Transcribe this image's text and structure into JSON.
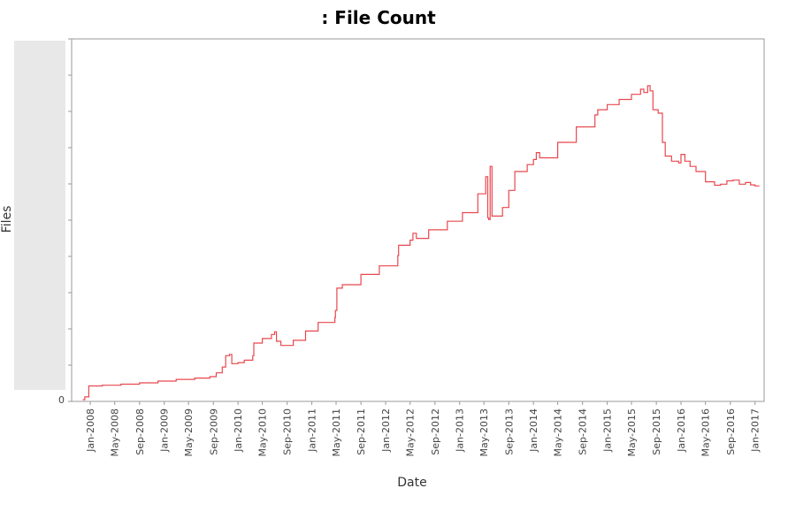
{
  "chart_data": {
    "type": "line",
    "title": ": File Count",
    "xlabel": "Date",
    "ylabel": "Files",
    "y_tick_labels": [
      "0"
    ],
    "x_tick_labels": [
      "Jan-2008",
      "May-2008",
      "Sep-2008",
      "Jan-2009",
      "May-2009",
      "Sep-2009",
      "Jan-2010",
      "May-2010",
      "Sep-2010",
      "Jan-2011",
      "May-2011",
      "Sep-2011",
      "Jan-2012",
      "May-2012",
      "Sep-2012",
      "Jan-2013",
      "May-2013",
      "Sep-2013",
      "Jan-2014",
      "May-2014",
      "Sep-2014",
      "Jan-2015",
      "May-2015",
      "Sep-2015",
      "Jan-2016",
      "May-2016",
      "Sep-2016",
      "Jan-2017"
    ],
    "xlim": [
      "2007-10-01",
      "2017-02-15"
    ],
    "ylim": [
      0,
      100
    ],
    "grid": false,
    "legend": false,
    "colors": {
      "line": "#e8484f",
      "axis": "#999999",
      "ylabel_band": "#e6e6e6"
    },
    "series": [
      {
        "points": [
          [
            "2007-11-25",
            0.0
          ],
          [
            "2007-12-05",
            0.8
          ],
          [
            "2007-12-20",
            0.8
          ],
          [
            "2007-12-25",
            4.0
          ],
          [
            "2008-03-01",
            4.2
          ],
          [
            "2008-06-01",
            4.5
          ],
          [
            "2008-09-01",
            4.9
          ],
          [
            "2008-12-01",
            5.4
          ],
          [
            "2009-03-01",
            5.9
          ],
          [
            "2009-06-01",
            6.3
          ],
          [
            "2009-08-15",
            6.7
          ],
          [
            "2009-09-15",
            7.8
          ],
          [
            "2009-10-15",
            9.5
          ],
          [
            "2009-11-01",
            12.8
          ],
          [
            "2009-11-20",
            13.2
          ],
          [
            "2009-12-01",
            10.5
          ],
          [
            "2010-01-01",
            10.8
          ],
          [
            "2010-02-01",
            11.5
          ],
          [
            "2010-03-15",
            12.8
          ],
          [
            "2010-03-20",
            16.5
          ],
          [
            "2010-05-01",
            17.8
          ],
          [
            "2010-06-15",
            19.0
          ],
          [
            "2010-07-01",
            19.8
          ],
          [
            "2010-07-10",
            17.0
          ],
          [
            "2010-08-01",
            15.8
          ],
          [
            "2010-10-01",
            17.3
          ],
          [
            "2010-12-01",
            20.0
          ],
          [
            "2011-02-01",
            22.5
          ],
          [
            "2011-04-25",
            24.0
          ],
          [
            "2011-04-28",
            26.0
          ],
          [
            "2011-05-05",
            32.5
          ],
          [
            "2011-06-01",
            33.5
          ],
          [
            "2011-09-01",
            36.5
          ],
          [
            "2011-12-01",
            39.0
          ],
          [
            "2012-03-01",
            42.0
          ],
          [
            "2012-03-05",
            45.0
          ],
          [
            "2012-05-01",
            46.5
          ],
          [
            "2012-05-15",
            48.5
          ],
          [
            "2012-06-01",
            47.0
          ],
          [
            "2012-08-01",
            49.5
          ],
          [
            "2012-11-01",
            52.0
          ],
          [
            "2013-01-15",
            54.5
          ],
          [
            "2013-04-01",
            60.0
          ],
          [
            "2013-05-10",
            65.0
          ],
          [
            "2013-05-20",
            53.0
          ],
          [
            "2013-05-25",
            52.5
          ],
          [
            "2013-06-01",
            68.0
          ],
          [
            "2013-06-10",
            53.5
          ],
          [
            "2013-08-01",
            56.0
          ],
          [
            "2013-09-01",
            61.0
          ],
          [
            "2013-10-01",
            66.5
          ],
          [
            "2013-12-01",
            68.5
          ],
          [
            "2014-01-01",
            70.0
          ],
          [
            "2014-01-15",
            72.0
          ],
          [
            "2014-02-01",
            70.5
          ],
          [
            "2014-05-01",
            75.0
          ],
          [
            "2014-08-01",
            79.5
          ],
          [
            "2014-11-01",
            83.0
          ],
          [
            "2014-11-15",
            84.5
          ],
          [
            "2015-01-01",
            86.0
          ],
          [
            "2015-03-01",
            87.5
          ],
          [
            "2015-05-01",
            89.0
          ],
          [
            "2015-06-15",
            90.5
          ],
          [
            "2015-07-01",
            89.5
          ],
          [
            "2015-07-20",
            91.5
          ],
          [
            "2015-08-01",
            90.0
          ],
          [
            "2015-08-15",
            84.5
          ],
          [
            "2015-09-10",
            83.5
          ],
          [
            "2015-10-01",
            75.0
          ],
          [
            "2015-10-15",
            71.0
          ],
          [
            "2015-11-15",
            69.5
          ],
          [
            "2015-12-20",
            69.0
          ],
          [
            "2016-01-01",
            71.5
          ],
          [
            "2016-01-20",
            69.5
          ],
          [
            "2016-02-15",
            68.0
          ],
          [
            "2016-03-15",
            66.5
          ],
          [
            "2016-05-01",
            63.5
          ],
          [
            "2016-06-15",
            62.5
          ],
          [
            "2016-07-15",
            62.8
          ],
          [
            "2016-08-15",
            63.8
          ],
          [
            "2016-09-15",
            64.0
          ],
          [
            "2016-10-15",
            62.8
          ],
          [
            "2016-11-15",
            63.3
          ],
          [
            "2016-12-10",
            62.6
          ],
          [
            "2017-01-01",
            62.3
          ],
          [
            "2017-01-20",
            62.2
          ]
        ]
      }
    ]
  }
}
